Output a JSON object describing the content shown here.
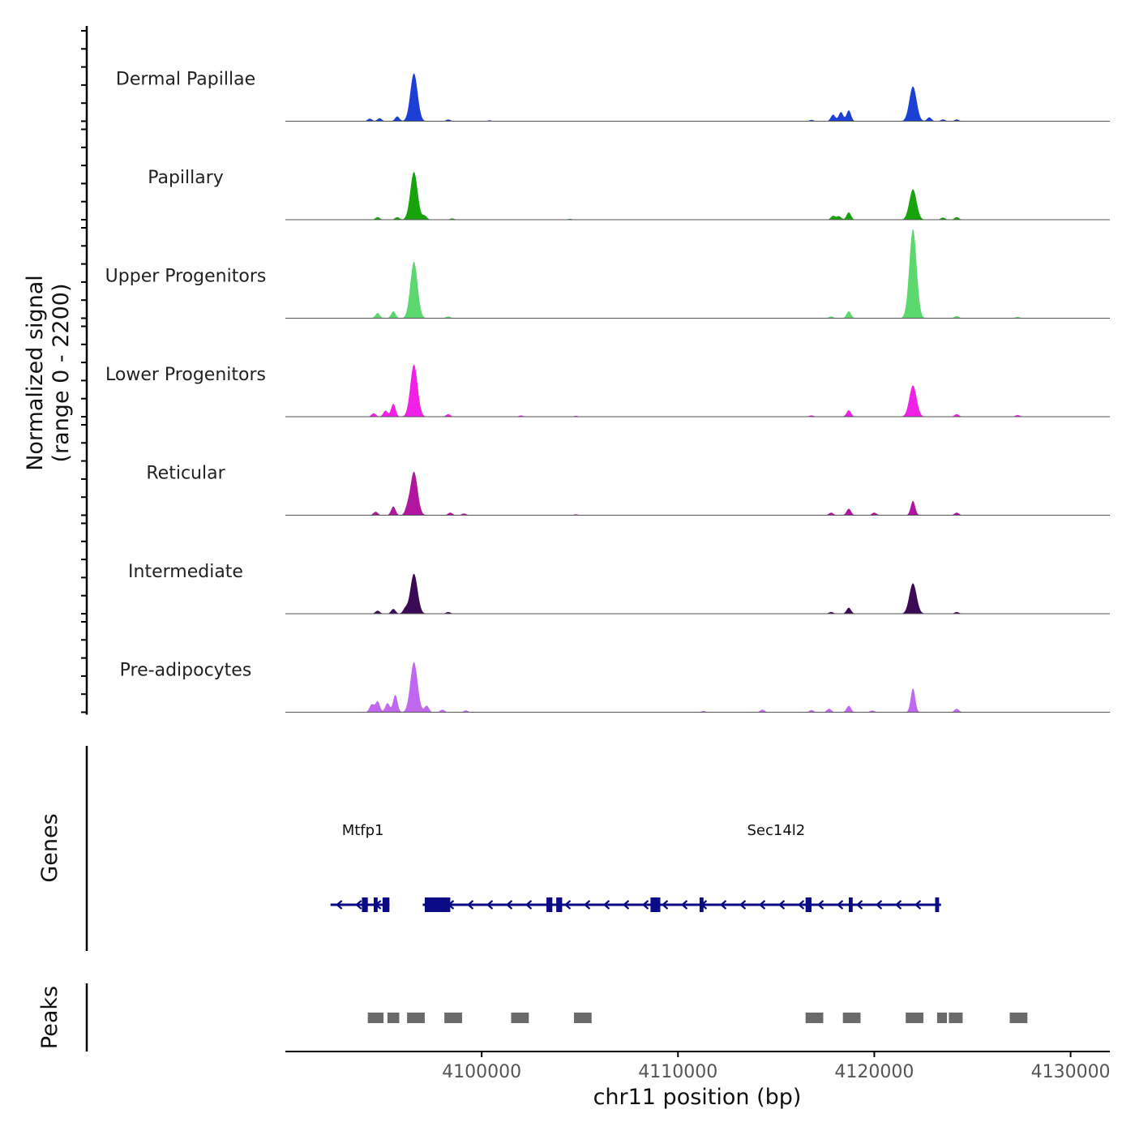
{
  "chart_data": {
    "type": "area",
    "title": "",
    "xlabel": "chr11 position (bp)",
    "ylabel_line1": "Normalized signal",
    "ylabel_line2": "(range 0 - 2200)",
    "xlim": [
      4090000,
      4132000
    ],
    "ylim": [
      0,
      2200
    ],
    "x_ticks": [
      4100000,
      4110000,
      4120000,
      4130000
    ],
    "x_tick_labels": [
      "4100000",
      "4110000",
      "4120000",
      "4130000"
    ],
    "genes_label": "Genes",
    "peaks_label": "Peaks",
    "tracks": [
      {
        "name": "Dermal Papillae",
        "color": "#1c3fd6",
        "peaks": [
          [
            4094300,
            60
          ],
          [
            4094800,
            70
          ],
          [
            4095700,
            110
          ],
          [
            4096550,
            1100
          ],
          [
            4098300,
            40
          ],
          [
            4100400,
            20
          ],
          [
            4116800,
            30
          ],
          [
            4117900,
            150
          ],
          [
            4118300,
            210
          ],
          [
            4118700,
            250
          ],
          [
            4121970,
            800
          ],
          [
            4122800,
            90
          ],
          [
            4123500,
            40
          ],
          [
            4124200,
            40
          ]
        ]
      },
      {
        "name": "Papillary",
        "color": "#17a30c",
        "peaks": [
          [
            4094700,
            60
          ],
          [
            4095700,
            60
          ],
          [
            4096550,
            1100
          ],
          [
            4097100,
            90
          ],
          [
            4098500,
            30
          ],
          [
            4104500,
            20
          ],
          [
            4117900,
            90
          ],
          [
            4118200,
            80
          ],
          [
            4118700,
            170
          ],
          [
            4121970,
            700
          ],
          [
            4123500,
            50
          ],
          [
            4124200,
            60
          ]
        ]
      },
      {
        "name": "Upper Progenitors",
        "color": "#5cd86e",
        "peaks": [
          [
            4094700,
            120
          ],
          [
            4095500,
            160
          ],
          [
            4096550,
            1300
          ],
          [
            4098300,
            40
          ],
          [
            4117800,
            40
          ],
          [
            4118700,
            160
          ],
          [
            4121970,
            2050
          ],
          [
            4124200,
            50
          ],
          [
            4127300,
            30
          ]
        ]
      },
      {
        "name": "Lower Progenitors",
        "color": "#f020e6",
        "peaks": [
          [
            4094500,
            80
          ],
          [
            4095100,
            140
          ],
          [
            4095500,
            300
          ],
          [
            4096550,
            1200
          ],
          [
            4098300,
            60
          ],
          [
            4102000,
            30
          ],
          [
            4104800,
            20
          ],
          [
            4116800,
            30
          ],
          [
            4118700,
            150
          ],
          [
            4121970,
            720
          ],
          [
            4124200,
            60
          ],
          [
            4127300,
            40
          ]
        ]
      },
      {
        "name": "Reticular",
        "color": "#b0169f",
        "peaks": [
          [
            4094600,
            80
          ],
          [
            4095500,
            200
          ],
          [
            4096200,
            120
          ],
          [
            4096550,
            1000
          ],
          [
            4098400,
            60
          ],
          [
            4099100,
            40
          ],
          [
            4104800,
            20
          ],
          [
            4117800,
            60
          ],
          [
            4118700,
            150
          ],
          [
            4120000,
            60
          ],
          [
            4121970,
            330
          ],
          [
            4124200,
            60
          ]
        ]
      },
      {
        "name": "Intermediate",
        "color": "#3b0a55",
        "peaks": [
          [
            4094700,
            70
          ],
          [
            4095500,
            110
          ],
          [
            4096100,
            110
          ],
          [
            4096550,
            920
          ],
          [
            4098300,
            40
          ],
          [
            4117800,
            40
          ],
          [
            4118700,
            140
          ],
          [
            4121970,
            700
          ],
          [
            4124200,
            40
          ]
        ]
      },
      {
        "name": "Pre-adipocytes",
        "color": "#c069f0",
        "peaks": [
          [
            4094400,
            180
          ],
          [
            4094700,
            250
          ],
          [
            4095200,
            210
          ],
          [
            4095600,
            400
          ],
          [
            4096550,
            1150
          ],
          [
            4097200,
            150
          ],
          [
            4098000,
            60
          ],
          [
            4099200,
            40
          ],
          [
            4111300,
            30
          ],
          [
            4114300,
            60
          ],
          [
            4116800,
            50
          ],
          [
            4117700,
            80
          ],
          [
            4118700,
            150
          ],
          [
            4119900,
            40
          ],
          [
            4121970,
            550
          ],
          [
            4124200,
            80
          ]
        ]
      }
    ],
    "genes": [
      {
        "name": "Mtfp1",
        "start": 4092300,
        "end": 4095300,
        "exons": [
          [
            4093900,
            4094200
          ],
          [
            4094500,
            4094700
          ],
          [
            4094950,
            4095300
          ]
        ]
      },
      {
        "name": "Sec14l2",
        "start": 4097000,
        "end": 4123400,
        "exons": [
          [
            4097100,
            4098400
          ],
          [
            4103300,
            4103600
          ],
          [
            4103800,
            4104100
          ],
          [
            4108600,
            4109100
          ],
          [
            4111100,
            4111300
          ],
          [
            4116500,
            4116800
          ],
          [
            4118700,
            4118900
          ],
          [
            4123100,
            4123300
          ]
        ]
      }
    ],
    "peak_regions": [
      [
        4094200,
        4095000
      ],
      [
        4095200,
        4095800
      ],
      [
        4096200,
        4097100
      ],
      [
        4098100,
        4099000
      ],
      [
        4101500,
        4102400
      ],
      [
        4104700,
        4105600
      ],
      [
        4116500,
        4117400
      ],
      [
        4118400,
        4119300
      ],
      [
        4121600,
        4122500
      ],
      [
        4123200,
        4123700
      ],
      [
        4123800,
        4124500
      ],
      [
        4126900,
        4127800
      ]
    ]
  }
}
